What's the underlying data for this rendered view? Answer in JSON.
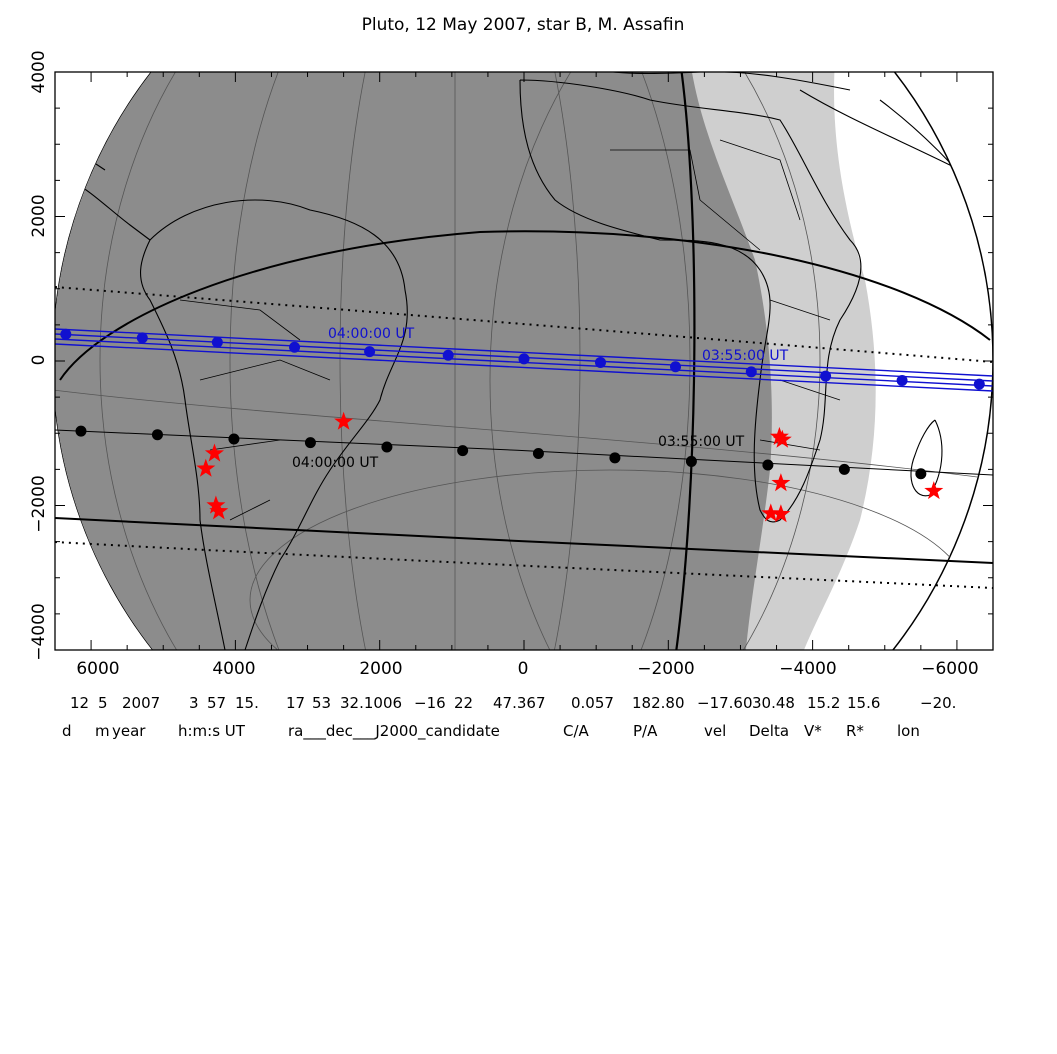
{
  "title": "Pluto, 12 May 2007, star B, M. Assafin",
  "x_ticks": [
    "6000",
    "4000",
    "2000",
    "0",
    "−2000",
    "−4000",
    "−6000"
  ],
  "y_ticks": [
    "4000",
    "2000",
    "0",
    "−2000",
    "−4000"
  ],
  "labels": {
    "blue_left": "04:00:00 UT",
    "blue_right": "03:55:00 UT",
    "black_left": "04:00:00 UT",
    "black_right": "03:55:00 UT"
  },
  "info": {
    "values": [
      "12",
      "5",
      "2007",
      "3",
      "57",
      "15.",
      "17",
      "53",
      "32.1006",
      "−16",
      "22",
      "47.367",
      "0.057",
      "182.80",
      "−17.60",
      "30.48",
      "15.2",
      "15.6",
      "−20."
    ],
    "headers": [
      "d",
      "m",
      "year",
      "h:m:s UT",
      "ra___dec___J2000_candidate",
      "C/A",
      "P/A",
      "vel",
      "Delta",
      "V*",
      "R*",
      "lon"
    ]
  },
  "colors": {
    "night": "#8c8c8c",
    "twilight": "#cfcfcf",
    "blue_track": "#1010d0",
    "stations": "#ff0000"
  },
  "chart_data": {
    "type": "scatter",
    "xlim": [
      6500,
      -6500
    ],
    "ylim": [
      -4000,
      4000
    ],
    "x_label_ticks": [
      6000,
      4000,
      2000,
      0,
      -2000,
      -4000,
      -6000
    ],
    "y_label_ticks": [
      4000,
      2000,
      0,
      -2000,
      -4000
    ],
    "series": [
      {
        "name": "blue",
        "points": [
          [
            6350,
            370
          ],
          [
            5290,
            320
          ],
          [
            4250,
            260
          ],
          [
            3180,
            190
          ],
          [
            2140,
            130
          ],
          [
            1050,
            80
          ],
          [
            0,
            30
          ],
          [
            -1060,
            -20
          ],
          [
            -2100,
            -80
          ],
          [
            -3150,
            -150
          ],
          [
            -4180,
            -210
          ],
          [
            -5240,
            -270
          ],
          [
            -6310,
            -320
          ]
        ]
      },
      {
        "name": "black",
        "points": [
          [
            6140,
            -970
          ],
          [
            5080,
            -1020
          ],
          [
            4020,
            -1080
          ],
          [
            2960,
            -1130
          ],
          [
            1900,
            -1190
          ],
          [
            850,
            -1240
          ],
          [
            -200,
            -1280
          ],
          [
            -1260,
            -1340
          ],
          [
            -2320,
            -1390
          ],
          [
            -3380,
            -1440
          ],
          [
            -4440,
            -1500
          ],
          [
            -5500,
            -1560
          ]
        ]
      },
      {
        "name": "stations",
        "points": [
          [
            4290,
            -1280
          ],
          [
            4410,
            -1490
          ],
          [
            4270,
            -2000
          ],
          [
            4230,
            -2080
          ],
          [
            2500,
            -840
          ],
          [
            -3540,
            -1050
          ],
          [
            -3580,
            -1090
          ],
          [
            -3560,
            -1690
          ],
          [
            -3420,
            -2110
          ],
          [
            -3560,
            -2120
          ],
          [
            -5680,
            -1800
          ]
        ]
      }
    ]
  }
}
